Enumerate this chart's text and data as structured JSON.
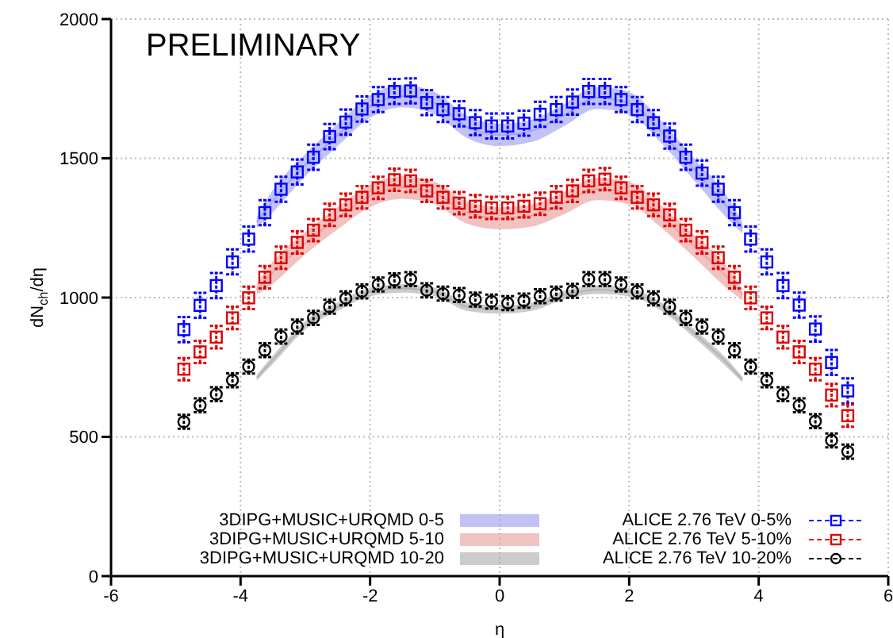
{
  "chart_data": {
    "type": "scatter",
    "xlabel": "η",
    "ylabel": "dN$_{ch}$/dη",
    "annotations": [
      "PRELIMINARY"
    ],
    "xlim": [
      -6,
      6
    ],
    "xticks": [
      -6,
      -4,
      -2,
      0,
      2,
      4,
      6
    ],
    "ylim": [
      0,
      2000
    ],
    "yticks": [
      0,
      500,
      1000,
      1500,
      2000
    ],
    "grid": true,
    "legend": "bottom right",
    "x": [
      -4.875,
      -4.625,
      -4.375,
      -4.125,
      -3.875,
      -3.625,
      -3.375,
      -3.125,
      -2.875,
      -2.625,
      -2.375,
      -2.125,
      -1.875,
      -1.625,
      -1.375,
      -1.125,
      -0.875,
      -0.625,
      -0.375,
      -0.125,
      0.125,
      0.375,
      0.625,
      0.875,
      1.125,
      1.375,
      1.625,
      1.875,
      2.125,
      2.375,
      2.625,
      2.875,
      3.125,
      3.375,
      3.625,
      3.875,
      4.125,
      4.375,
      4.625,
      4.875,
      5.125,
      5.375
    ],
    "series": [
      {
        "type": "line",
        "name": "3DIPG+MUSIC+URQMD 0-5",
        "color": "#9999f0",
        "x": [
          -3.75,
          -3.5,
          -3,
          -2.5,
          -2,
          -1.5,
          -1,
          -0.5,
          0,
          0.5,
          1,
          1.5,
          2,
          2.5,
          3,
          3.5,
          3.75
        ],
        "values": [
          1270,
          1347,
          1476,
          1584,
          1685,
          1723,
          1698,
          1613,
          1584,
          1599,
          1656,
          1717,
          1698,
          1594,
          1461,
          1328,
          1250
        ],
        "lower": [
          1250,
          1307,
          1436,
          1544,
          1645,
          1683,
          1658,
          1573,
          1544,
          1559,
          1616,
          1677,
          1658,
          1554,
          1421,
          1288,
          1230
        ],
        "upper": [
          1290,
          1387,
          1516,
          1624,
          1725,
          1763,
          1738,
          1653,
          1624,
          1639,
          1696,
          1757,
          1738,
          1634,
          1501,
          1368,
          1270
        ]
      },
      {
        "type": "line",
        "name": "3DIPG+MUSIC+URQMD 5-10",
        "color": "#e89999",
        "x": [
          -3.75,
          -3.5,
          -3,
          -2.5,
          -2,
          -1.5,
          -1,
          -0.5,
          0,
          0.5,
          1,
          1.5,
          2,
          2.5,
          3,
          3.5,
          3.75
        ],
        "values": [
          1030,
          1090,
          1195,
          1285,
          1365,
          1395,
          1375,
          1305,
          1285,
          1295,
          1340,
          1390,
          1375,
          1290,
          1185,
          1075,
          1010
        ],
        "lower": [
          1010,
          1050,
          1155,
          1245,
          1325,
          1355,
          1335,
          1265,
          1245,
          1255,
          1300,
          1350,
          1335,
          1250,
          1145,
          1035,
          990
        ],
        "upper": [
          1050,
          1130,
          1235,
          1325,
          1405,
          1435,
          1415,
          1345,
          1325,
          1335,
          1380,
          1430,
          1415,
          1330,
          1225,
          1115,
          1030
        ]
      },
      {
        "type": "line",
        "name": "3DIPG+MUSIC+URQMD 10-20",
        "color": "#aaaaaa",
        "x": [
          -3.75,
          -3.5,
          -3,
          -2.5,
          -2,
          -1.5,
          -1,
          -0.5,
          0,
          0.5,
          1,
          1.5,
          2,
          2.5,
          3,
          3.5,
          3.75
        ],
        "values": [
          712,
          777,
          900,
          967,
          1020,
          1033,
          1020,
          967,
          957,
          967,
          1009,
          1028,
          1020,
          967,
          872,
          767,
          705
        ],
        "lower": [
          702,
          762,
          885,
          952,
          1005,
          1018,
          1005,
          952,
          942,
          952,
          994,
          1013,
          1005,
          952,
          857,
          752,
          695
        ],
        "upper": [
          722,
          792,
          915,
          982,
          1035,
          1048,
          1035,
          982,
          972,
          982,
          1024,
          1043,
          1035,
          982,
          887,
          782,
          715
        ]
      },
      {
        "name": "ALICE 2.76 TeV 0-5%",
        "color": "#0000ff",
        "marker": "square",
        "values": [
          885,
          972,
          1043,
          1128,
          1210,
          1305,
          1389,
          1451,
          1504,
          1578,
          1630,
          1677,
          1711,
          1740,
          1742,
          1700,
          1675,
          1660,
          1628,
          1616,
          1616,
          1626,
          1658,
          1675,
          1702,
          1740,
          1740,
          1711,
          1675,
          1628,
          1580,
          1504,
          1447,
          1389,
          1305,
          1210,
          1128,
          1043,
          973,
          887,
          767,
          665
        ],
        "errors": [
          45,
          45,
          45,
          45,
          45,
          45,
          45,
          45,
          45,
          45,
          45,
          45,
          45,
          45,
          45,
          45,
          45,
          45,
          45,
          45,
          45,
          45,
          45,
          45,
          45,
          45,
          45,
          45,
          45,
          45,
          45,
          45,
          45,
          45,
          45,
          45,
          45,
          45,
          45,
          45,
          45,
          45
        ]
      },
      {
        "name": "ALICE 2.76 TeV 5-10%",
        "color": "#e00000",
        "marker": "square",
        "values": [
          743,
          805,
          858,
          927,
          999,
          1073,
          1143,
          1198,
          1242,
          1297,
          1333,
          1360,
          1394,
          1423,
          1419,
          1383,
          1360,
          1339,
          1328,
          1322,
          1322,
          1328,
          1337,
          1360,
          1383,
          1419,
          1425,
          1394,
          1360,
          1333,
          1297,
          1242,
          1198,
          1143,
          1073,
          999,
          927,
          858,
          805,
          743,
          650,
          576
        ],
        "errors": [
          40,
          40,
          40,
          40,
          40,
          40,
          40,
          40,
          40,
          40,
          40,
          40,
          40,
          40,
          40,
          40,
          40,
          40,
          40,
          40,
          40,
          40,
          40,
          40,
          40,
          40,
          40,
          40,
          40,
          40,
          40,
          40,
          40,
          40,
          40,
          40,
          40,
          40,
          40,
          40,
          40,
          40
        ]
      },
      {
        "name": "ALICE 2.76 TeV 10-20%",
        "color": "#000000",
        "marker": "circle",
        "values": [
          554,
          613,
          653,
          703,
          752,
          811,
          860,
          896,
          927,
          967,
          997,
          1022,
          1047,
          1062,
          1066,
          1026,
          1014,
          1009,
          993,
          986,
          980,
          989,
          1005,
          1014,
          1024,
          1066,
          1066,
          1047,
          1022,
          997,
          967,
          927,
          896,
          860,
          811,
          752,
          703,
          653,
          613,
          556,
          487,
          447
        ],
        "errors": [
          25,
          25,
          25,
          25,
          25,
          25,
          25,
          25,
          25,
          25,
          25,
          25,
          25,
          25,
          25,
          25,
          25,
          25,
          25,
          25,
          25,
          25,
          25,
          25,
          25,
          25,
          25,
          25,
          25,
          25,
          25,
          25,
          25,
          25,
          25,
          25,
          25,
          25,
          25,
          25,
          25,
          25
        ]
      }
    ]
  }
}
